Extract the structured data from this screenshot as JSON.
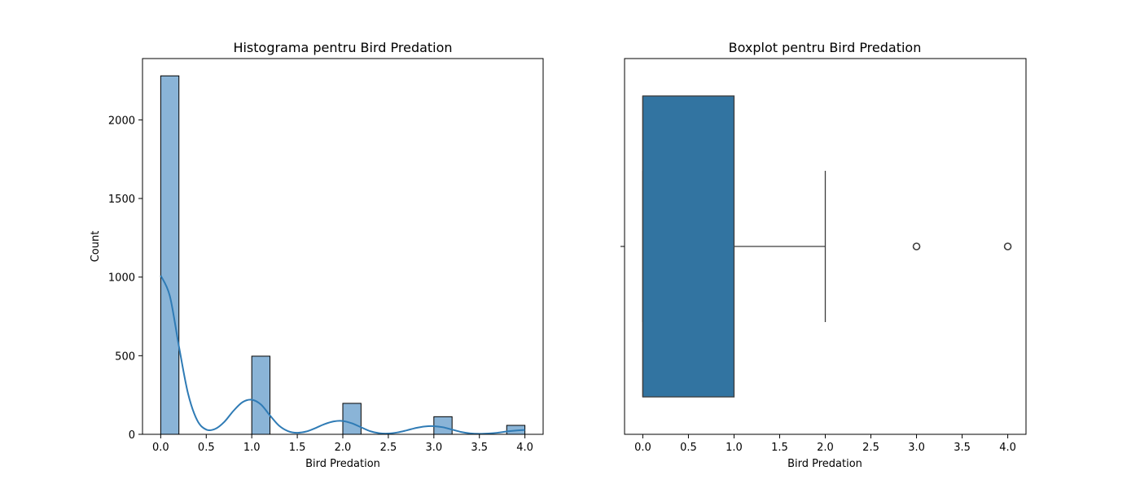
{
  "chart_data": [
    {
      "type": "bar",
      "subtype": "histogram",
      "title": "Histograma pentru Bird Predation",
      "xlabel": "Bird Predation",
      "ylabel": "Count",
      "xlim": [
        -0.2,
        4.2
      ],
      "ylim": [
        0,
        2390
      ],
      "xticks": [
        0.0,
        0.5,
        1.0,
        1.5,
        2.0,
        2.5,
        3.0,
        3.5,
        4.0
      ],
      "xtick_labels": [
        "0.0",
        "0.5",
        "1.0",
        "1.5",
        "2.0",
        "2.5",
        "3.0",
        "3.5",
        "4.0"
      ],
      "yticks": [
        0,
        500,
        1000,
        1500,
        2000
      ],
      "ytick_labels": [
        "0",
        "500",
        "1000",
        "1500",
        "2000"
      ],
      "bins": [
        {
          "x0": 0.0,
          "x1": 0.2,
          "count": 2280
        },
        {
          "x0": 1.0,
          "x1": 1.2,
          "count": 497
        },
        {
          "x0": 2.0,
          "x1": 2.2,
          "count": 197
        },
        {
          "x0": 3.0,
          "x1": 3.2,
          "count": 112
        },
        {
          "x0": 3.8,
          "x1": 4.0,
          "count": 57
        }
      ],
      "kde": {
        "x": [
          0.0,
          0.1,
          0.2,
          0.3,
          0.4,
          0.5,
          0.6,
          0.7,
          0.8,
          0.9,
          1.0,
          1.1,
          1.2,
          1.3,
          1.4,
          1.5,
          1.6,
          1.7,
          1.8,
          1.9,
          2.0,
          2.1,
          2.2,
          2.3,
          2.4,
          2.5,
          2.6,
          2.7,
          2.8,
          2.9,
          3.0,
          3.1,
          3.2,
          3.3,
          3.4,
          3.5,
          3.6,
          3.7,
          3.8,
          3.9,
          4.0
        ],
        "y": [
          1010,
          880,
          560,
          260,
          90,
          30,
          35,
          80,
          150,
          205,
          220,
          190,
          120,
          55,
          20,
          10,
          18,
          40,
          65,
          82,
          85,
          70,
          45,
          20,
          7,
          5,
          12,
          25,
          40,
          50,
          52,
          45,
          30,
          15,
          6,
          3,
          5,
          10,
          18,
          24,
          28
        ]
      },
      "colors": {
        "bar_fill": "#8ab4d7",
        "bar_edge": "#000000",
        "kde_line": "#2f7bb5"
      }
    },
    {
      "type": "boxplot",
      "title": "Boxplot pentru Bird Predation",
      "xlabel": "Bird Predation",
      "xlim": [
        -0.2,
        4.2
      ],
      "xticks": [
        0.0,
        0.5,
        1.0,
        1.5,
        2.0,
        2.5,
        3.0,
        3.5,
        4.0
      ],
      "xtick_labels": [
        "0.0",
        "0.5",
        "1.0",
        "1.5",
        "2.0",
        "2.5",
        "3.0",
        "3.5",
        "4.0"
      ],
      "stats": {
        "whisker_low": 0,
        "q1": 0,
        "median": 0,
        "q3": 1,
        "whisker_high": 2
      },
      "outliers": [
        3,
        4
      ],
      "colors": {
        "box_fill": "#3274a1",
        "line": "#3d3d3d"
      }
    }
  ]
}
